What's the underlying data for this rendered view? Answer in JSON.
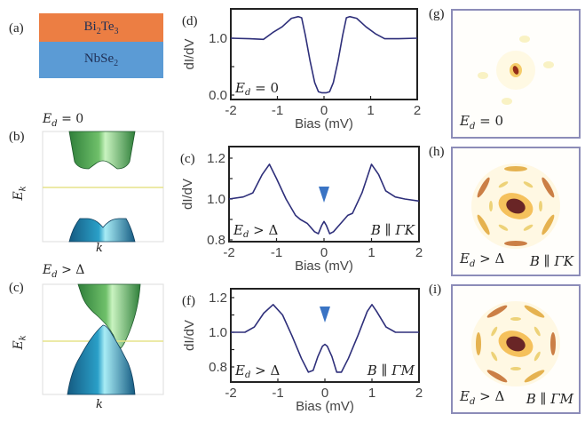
{
  "panel_a": {
    "label": "(a)",
    "layers": [
      {
        "name": "Bi2Te3",
        "base1": "Bi",
        "sub1": "2",
        "base2": "Te",
        "sub2": "3",
        "color": "#ec7e43"
      },
      {
        "name": "NbSe2",
        "base1": "NbSe",
        "sub1": "2",
        "color": "#5b9bd5"
      }
    ]
  },
  "panel_b": {
    "label": "(b)",
    "condition": {
      "var": "E",
      "sub": "d",
      "rel": " = 0"
    },
    "ylabel": {
      "var": "E",
      "sub": "k"
    },
    "xlabel": "k",
    "fermi_line_color": "#e6e38a"
  },
  "panel_c_band": {
    "label": "(c)",
    "condition": {
      "var": "E",
      "sub": "d",
      "rel": " > Δ"
    },
    "ylabel": {
      "var": "E",
      "sub": "k"
    },
    "xlabel": "k"
  },
  "chart_data": [
    {
      "id": "d",
      "type": "line",
      "label": "(d)",
      "xlabel": "Bias (mV)",
      "ylabel": "dI/dV",
      "xlim": [
        -2,
        2
      ],
      "ylim": [
        -0.05,
        1.5
      ],
      "xticks": [
        -2,
        -1,
        0,
        1,
        2
      ],
      "yticks": [
        0.0,
        1.0
      ],
      "ytick_labels": [
        "0.0",
        "1.0"
      ],
      "annotation": {
        "var": "E",
        "sub": "d",
        "rel": " = 0",
        "position": "bottom-left"
      },
      "line_color": "#2e2f7a",
      "series": [
        {
          "name": "Ed=0",
          "x": [
            -2.0,
            -1.6,
            -1.3,
            -1.1,
            -0.9,
            -0.7,
            -0.55,
            -0.48,
            -0.4,
            -0.3,
            -0.2,
            -0.12,
            -0.05,
            0.0,
            0.05,
            0.12,
            0.2,
            0.3,
            0.4,
            0.48,
            0.55,
            0.7,
            0.9,
            1.1,
            1.3,
            1.6,
            2.0
          ],
          "y": [
            1.0,
            0.99,
            0.98,
            1.1,
            1.2,
            1.35,
            1.38,
            1.36,
            1.05,
            0.6,
            0.22,
            0.06,
            0.04,
            0.04,
            0.04,
            0.06,
            0.22,
            0.6,
            1.05,
            1.36,
            1.38,
            1.35,
            1.2,
            1.08,
            0.99,
            0.99,
            1.0
          ]
        }
      ]
    },
    {
      "id": "e",
      "type": "line",
      "label": "(c)",
      "xlabel": "Bias (mV)",
      "ylabel": "dI/dV",
      "xlim": [
        -2,
        2
      ],
      "ylim": [
        0.8,
        1.25
      ],
      "xticks": [
        -2,
        -1,
        0,
        1,
        2
      ],
      "yticks": [
        0.8,
        1.0,
        1.2
      ],
      "ytick_labels": [
        "0.8",
        "1.0",
        "1.2"
      ],
      "annotation": {
        "var": "E",
        "sub": "d",
        "rel": " > Δ",
        "position": "bottom-left"
      },
      "annotation_right": {
        "text": "B ∥ ΓK",
        "position": "bottom-right"
      },
      "marker": {
        "x": 0,
        "type": "down-triangle",
        "color": "#3a74c4"
      },
      "line_color": "#2e2f7a",
      "series": [
        {
          "name": "B||GK",
          "x": [
            -2.0,
            -1.7,
            -1.5,
            -1.3,
            -1.15,
            -1.0,
            -0.8,
            -0.6,
            -0.5,
            -0.35,
            -0.2,
            -0.12,
            -0.05,
            0.0,
            0.05,
            0.12,
            0.2,
            0.35,
            0.5,
            0.6,
            0.8,
            1.0,
            1.15,
            1.3,
            1.5,
            1.7,
            2.0
          ],
          "y": [
            1.0,
            1.01,
            1.03,
            1.12,
            1.17,
            1.1,
            1.0,
            0.92,
            0.9,
            0.88,
            0.84,
            0.83,
            0.87,
            0.89,
            0.87,
            0.83,
            0.84,
            0.88,
            0.92,
            0.93,
            1.03,
            1.17,
            1.12,
            1.04,
            1.01,
            1.0,
            0.99
          ]
        }
      ]
    },
    {
      "id": "f",
      "type": "line",
      "label": "(f)",
      "xlabel": "Bias (mV)",
      "ylabel": "dI/dV",
      "xlim": [
        -2,
        2
      ],
      "ylim": [
        0.72,
        1.24
      ],
      "xticks": [
        -2,
        -1,
        0,
        1,
        2
      ],
      "yticks": [
        0.8,
        1.0,
        1.2
      ],
      "ytick_labels": [
        "0.8",
        "1.0",
        "1.2"
      ],
      "annotation": {
        "var": "E",
        "sub": "d",
        "rel": " > Δ",
        "position": "bottom-left"
      },
      "annotation_right": {
        "text": "B ∥ ΓM",
        "position": "bottom-right"
      },
      "marker": {
        "x": 0,
        "type": "down-triangle",
        "color": "#3a74c4"
      },
      "line_color": "#2e2f7a",
      "series": [
        {
          "name": "B||GM",
          "x": [
            -2.0,
            -1.7,
            -1.5,
            -1.3,
            -1.1,
            -0.9,
            -0.7,
            -0.5,
            -0.35,
            -0.25,
            -0.15,
            -0.05,
            0.0,
            0.05,
            0.15,
            0.25,
            0.35,
            0.5,
            0.7,
            0.9,
            1.0,
            1.1,
            1.3,
            1.5,
            1.7,
            2.0
          ],
          "y": [
            1.0,
            1.0,
            1.03,
            1.11,
            1.16,
            1.1,
            0.98,
            0.85,
            0.77,
            0.78,
            0.86,
            0.92,
            0.93,
            0.92,
            0.86,
            0.77,
            0.77,
            0.85,
            0.98,
            1.12,
            1.16,
            1.12,
            1.03,
            1.0,
            1.0,
            1.0
          ]
        }
      ]
    }
  ],
  "stm_maps": [
    {
      "label": "(g)",
      "annotation": {
        "var": "E",
        "sub": "d",
        "rel": " = 0"
      },
      "annotation_right": "",
      "pattern": "single-spot"
    },
    {
      "label": "(h)",
      "annotation": {
        "var": "E",
        "sub": "d",
        "rel": " > Δ"
      },
      "annotation_right": "B ∥ ΓK",
      "pattern": "six-fold-ΓK"
    },
    {
      "label": "(i)",
      "annotation": {
        "var": "E",
        "sub": "d",
        "rel": " > Δ"
      },
      "annotation_right": "B ∥ ΓM",
      "pattern": "six-fold-ΓM"
    }
  ]
}
